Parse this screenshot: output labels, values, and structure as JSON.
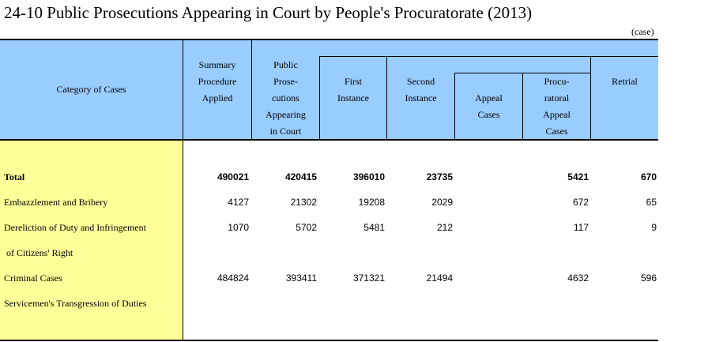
{
  "title": "24-10  Public Prosecutions Appearing in Court by People's Procuratorate (2013)",
  "unit": "(case)",
  "header": {
    "category": "Category of Cases",
    "summary": [
      "Summary",
      "Procedure",
      "Applied"
    ],
    "public": [
      "Public",
      "Prose-",
      "cutions",
      "Appearing",
      "in Court"
    ],
    "first": [
      "First",
      "Instance"
    ],
    "second": [
      "Second",
      "Instance"
    ],
    "appeal": [
      "Appeal",
      "Cases"
    ],
    "procu": [
      "Procu-",
      "ratoral",
      "Appeal",
      "Cases"
    ],
    "retrial": [
      "Retrial"
    ]
  },
  "rows": [
    {
      "label": "Total",
      "summary": "490021",
      "public": "420415",
      "first": "396010",
      "second": "23735",
      "appeal": "",
      "procu": "5421",
      "retrial": "670"
    },
    {
      "label": "Embazzlement and Bribery",
      "summary": "4127",
      "public": "21302",
      "first": "19208",
      "second": "2029",
      "appeal": "",
      "procu": "672",
      "retrial": "65"
    },
    {
      "label": "Dereliction of Duty and Infringement",
      "summary": "1070",
      "public": "5702",
      "first": "5481",
      "second": "212",
      "appeal": "",
      "procu": "117",
      "retrial": "9"
    },
    {
      "label": " of Citizens' Right",
      "summary": "",
      "public": "",
      "first": "",
      "second": "",
      "appeal": "",
      "procu": "",
      "retrial": ""
    },
    {
      "label": "Criminal Cases",
      "summary": "484824",
      "public": "393411",
      "first": "371321",
      "second": "21494",
      "appeal": "",
      "procu": "4632",
      "retrial": "596"
    },
    {
      "label": "Servicemen's Transgression of Duties",
      "summary": "",
      "public": "",
      "first": "",
      "second": "",
      "appeal": "",
      "procu": "",
      "retrial": ""
    }
  ]
}
